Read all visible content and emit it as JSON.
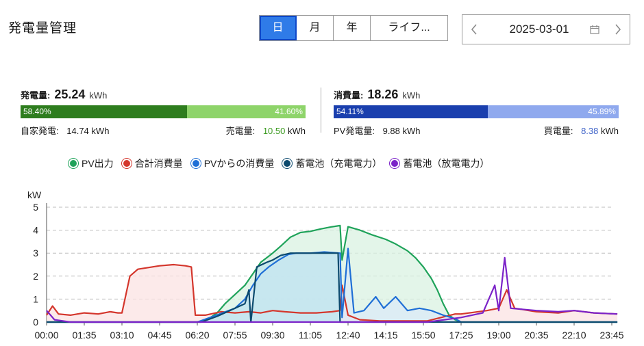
{
  "header": {
    "title": "発電量管理"
  },
  "period_tabs": [
    {
      "label": "日",
      "active": true
    },
    {
      "label": "月",
      "active": false
    },
    {
      "label": "年",
      "active": false
    },
    {
      "label": "ライフ...",
      "active": false
    }
  ],
  "date_picker": {
    "value": "2025-03-01",
    "prev_icon": "chevron-left-icon",
    "next_icon": "chevron-right-icon",
    "calendar_icon": "calendar-icon"
  },
  "generation": {
    "label": "発電量:",
    "value": "25.24",
    "unit": "kWh",
    "bar_left_pct": "58.40%",
    "bar_right_pct": "41.60%",
    "bar_left_fraction": 0.584,
    "left_color": "#2e7d1e",
    "right_color": "#8ed46a",
    "self_label": "自家発電:",
    "self_value": "14.74",
    "self_unit": "kWh",
    "sell_label": "売電量:",
    "sell_value": "10.50",
    "sell_unit": "kWh",
    "sell_color": "#3b9a1f"
  },
  "consumption": {
    "label": "消費量:",
    "value": "18.26",
    "unit": "kWh",
    "bar_left_pct": "54.11%",
    "bar_right_pct": "45.89%",
    "bar_left_fraction": 0.5411,
    "left_color": "#1a3fae",
    "right_color": "#8fa9ee",
    "pv_label": "PV発電量:",
    "pv_value": "9.88",
    "pv_unit": "kWh",
    "buy_label": "買電量:",
    "buy_value": "8.38",
    "buy_unit": "kWh",
    "buy_color": "#3f63c8"
  },
  "chart_data": {
    "type": "line",
    "ylabel": "kW",
    "ylim": [
      0,
      5
    ],
    "yticks": [
      "0",
      "1",
      "2",
      "3",
      "4",
      "5"
    ],
    "xticks": [
      "00:00",
      "01:35",
      "03:10",
      "04:45",
      "06:20",
      "07:55",
      "09:30",
      "11:05",
      "12:40",
      "14:15",
      "15:50",
      "17:25",
      "19:00",
      "20:35",
      "22:10",
      "23:45"
    ],
    "grid": true,
    "legend_position": "top",
    "series": [
      {
        "name": "PV出力",
        "color": "#1fa35a",
        "fill": "#d9f1e2",
        "points": [
          [
            "00:00",
            0
          ],
          [
            "06:20",
            0
          ],
          [
            "06:45",
            0.1
          ],
          [
            "07:10",
            0.4
          ],
          [
            "07:30",
            0.8
          ],
          [
            "07:55",
            1.2
          ],
          [
            "08:20",
            1.6
          ],
          [
            "08:40",
            2.1
          ],
          [
            "09:00",
            2.6
          ],
          [
            "09:30",
            3.0
          ],
          [
            "09:50",
            3.3
          ],
          [
            "10:15",
            3.7
          ],
          [
            "10:40",
            3.9
          ],
          [
            "11:05",
            3.95
          ],
          [
            "11:30",
            4.05
          ],
          [
            "12:00",
            4.15
          ],
          [
            "12:20",
            4.2
          ],
          [
            "12:25",
            2.7
          ],
          [
            "12:40",
            4.15
          ],
          [
            "13:10",
            4.0
          ],
          [
            "13:40",
            3.8
          ],
          [
            "14:15",
            3.6
          ],
          [
            "14:40",
            3.4
          ],
          [
            "15:10",
            3.1
          ],
          [
            "15:30",
            2.8
          ],
          [
            "15:50",
            2.4
          ],
          [
            "16:10",
            1.9
          ],
          [
            "16:25",
            1.4
          ],
          [
            "16:40",
            0.8
          ],
          [
            "16:55",
            0.3
          ],
          [
            "17:10",
            0.1
          ],
          [
            "17:25",
            0
          ],
          [
            "23:59",
            0
          ]
        ]
      },
      {
        "name": "合計消費量",
        "color": "#d4362c",
        "fill": "#fbe3e3",
        "points": [
          [
            "00:00",
            0.3
          ],
          [
            "00:15",
            0.7
          ],
          [
            "00:30",
            0.35
          ],
          [
            "01:00",
            0.3
          ],
          [
            "01:35",
            0.4
          ],
          [
            "02:10",
            0.35
          ],
          [
            "02:40",
            0.45
          ],
          [
            "03:00",
            0.4
          ],
          [
            "03:10",
            0.4
          ],
          [
            "03:30",
            2.0
          ],
          [
            "03:50",
            2.3
          ],
          [
            "04:45",
            2.45
          ],
          [
            "05:20",
            2.5
          ],
          [
            "05:50",
            2.45
          ],
          [
            "06:05",
            2.4
          ],
          [
            "06:15",
            0.3
          ],
          [
            "06:40",
            0.3
          ],
          [
            "07:20",
            0.45
          ],
          [
            "07:55",
            0.4
          ],
          [
            "08:30",
            0.45
          ],
          [
            "09:00",
            0.4
          ],
          [
            "09:30",
            0.5
          ],
          [
            "10:00",
            0.45
          ],
          [
            "10:40",
            0.4
          ],
          [
            "11:20",
            0.4
          ],
          [
            "12:00",
            0.45
          ],
          [
            "12:20",
            0.5
          ],
          [
            "12:25",
            1.6
          ],
          [
            "12:40",
            0.3
          ],
          [
            "13:10",
            0.1
          ],
          [
            "14:00",
            0.05
          ],
          [
            "16:00",
            0.05
          ],
          [
            "17:10",
            0.35
          ],
          [
            "17:25",
            0.35
          ],
          [
            "18:30",
            0.5
          ],
          [
            "19:00",
            0.6
          ],
          [
            "19:20",
            1.4
          ],
          [
            "19:40",
            0.6
          ],
          [
            "20:35",
            0.45
          ],
          [
            "21:30",
            0.4
          ],
          [
            "22:10",
            0.5
          ],
          [
            "23:00",
            0.4
          ],
          [
            "23:59",
            0.35
          ]
        ]
      },
      {
        "name": "PVからの消費量",
        "color": "#1f6fd6",
        "fill": "#dbe9f7",
        "points": [
          [
            "00:00",
            0
          ],
          [
            "06:20",
            0
          ],
          [
            "07:00",
            0.25
          ],
          [
            "07:55",
            0.6
          ],
          [
            "08:20",
            1.0
          ],
          [
            "08:40",
            1.6
          ],
          [
            "09:00",
            2.1
          ],
          [
            "09:20",
            2.4
          ],
          [
            "09:45",
            2.7
          ],
          [
            "10:10",
            2.95
          ],
          [
            "10:30",
            3.0
          ],
          [
            "11:05",
            3.0
          ],
          [
            "11:40",
            3.05
          ],
          [
            "12:20",
            3.0
          ],
          [
            "12:25",
            0.2
          ],
          [
            "12:40",
            3.2
          ],
          [
            "12:55",
            0.4
          ],
          [
            "13:20",
            0.5
          ],
          [
            "13:50",
            1.1
          ],
          [
            "14:10",
            0.6
          ],
          [
            "14:40",
            1.1
          ],
          [
            "15:10",
            0.5
          ],
          [
            "15:40",
            0.6
          ],
          [
            "16:10",
            0.5
          ],
          [
            "16:40",
            0.3
          ],
          [
            "17:10",
            0.15
          ],
          [
            "17:25",
            0
          ],
          [
            "23:59",
            0
          ]
        ]
      },
      {
        "name": "蓄電池（充電電力）",
        "color": "#0c4a6e",
        "fill": "#bfe4ee",
        "points": [
          [
            "00:00",
            0
          ],
          [
            "06:30",
            0
          ],
          [
            "07:10",
            0.25
          ],
          [
            "07:55",
            0.6
          ],
          [
            "08:20",
            0.8
          ],
          [
            "08:30",
            1.4
          ],
          [
            "08:35",
            0
          ],
          [
            "08:50",
            2.4
          ],
          [
            "09:15",
            2.6
          ],
          [
            "09:30",
            2.7
          ],
          [
            "09:50",
            2.9
          ],
          [
            "10:15",
            3.0
          ],
          [
            "11:05",
            3.0
          ],
          [
            "12:15",
            3.0
          ],
          [
            "12:20",
            0
          ],
          [
            "23:59",
            0
          ]
        ]
      },
      {
        "name": "蓄電池（放電電力）",
        "color": "#7b22c8",
        "fill": "",
        "points": [
          [
            "00:00",
            0.5
          ],
          [
            "00:20",
            0.1
          ],
          [
            "01:00",
            0
          ],
          [
            "06:20",
            0
          ],
          [
            "12:40",
            0
          ],
          [
            "16:00",
            0
          ],
          [
            "17:25",
            0.2
          ],
          [
            "18:20",
            0.4
          ],
          [
            "18:50",
            1.6
          ],
          [
            "19:00",
            0.5
          ],
          [
            "19:15",
            2.8
          ],
          [
            "19:30",
            0.6
          ],
          [
            "20:35",
            0.5
          ],
          [
            "21:30",
            0.45
          ],
          [
            "22:10",
            0.5
          ],
          [
            "23:00",
            0.4
          ],
          [
            "23:59",
            0.35
          ]
        ]
      }
    ]
  }
}
